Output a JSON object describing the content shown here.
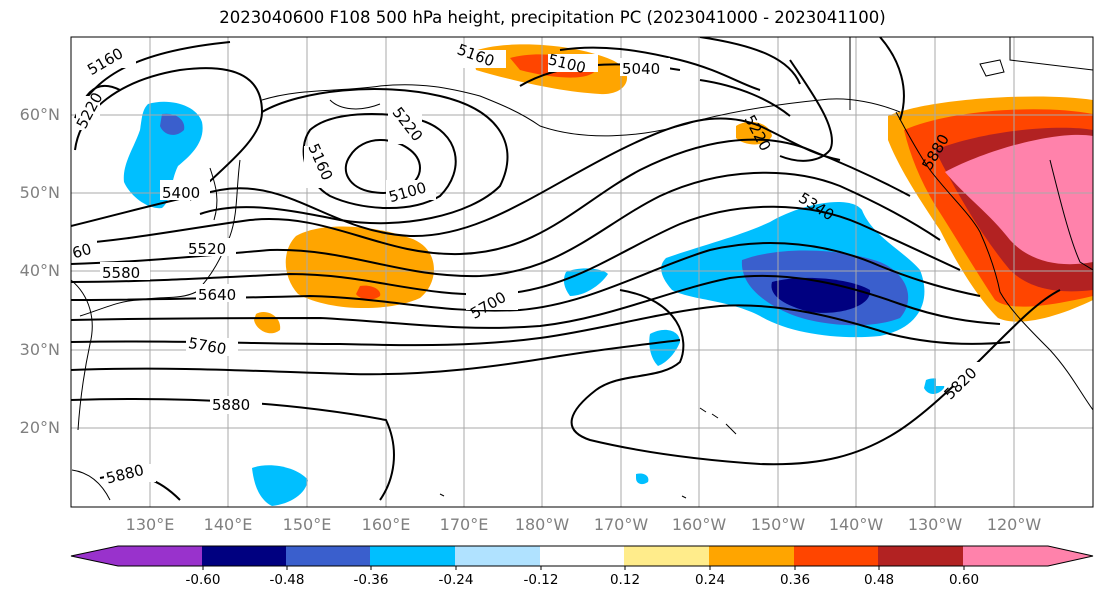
{
  "title": "2023040600 F108 500 hPa height, precipitation PC (2023041000 - 2023041100)",
  "latitudes": [
    "60°N",
    "50°N",
    "40°N",
    "30°N",
    "20°N"
  ],
  "longitudes": [
    "130°E",
    "140°E",
    "150°E",
    "160°E",
    "170°E",
    "180°W",
    "170°W",
    "160°W",
    "150°W",
    "140°W",
    "130°W",
    "120°W"
  ],
  "contour_labels": [
    "5160",
    "5220",
    "5400",
    "5520",
    "5580",
    "5640",
    "5760",
    "5880",
    "5880",
    "5160",
    "5100",
    "5040",
    "5220",
    "5160",
    "5100",
    "5220",
    "5340",
    "5700",
    "5880",
    "5820",
    "60"
  ],
  "colorbar": {
    "ticks": [
      "-0.60",
      "-0.48",
      "-0.36",
      "-0.24",
      "-0.12",
      "0.12",
      "0.24",
      "0.36",
      "0.48",
      "0.60"
    ],
    "colors": [
      "#9932cc",
      "#000080",
      "#3a5fcd",
      "#00bfff",
      "#b0e2ff",
      "#ffffff",
      "#ffec8b",
      "#ffa500",
      "#ff4500",
      "#b22222",
      "#ff82ab"
    ]
  }
}
